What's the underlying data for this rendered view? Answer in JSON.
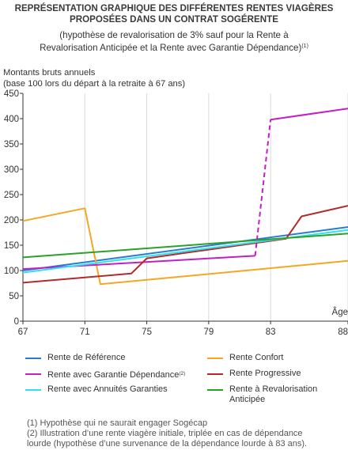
{
  "title": {
    "line1": "REPRÉSENTATION GRAPHIQUE DES DIFFÉRENTES RENTES VIAGÈRES",
    "line2": "PROPOSÉES DANS UN CONTRAT SOGÉRENTE"
  },
  "subtitle": {
    "line1": "(hypothèse de revalorisation de 3% sauf pour la Rente à",
    "line2": "Revalorisation Anticipée et la Rente avec Garantie Dépendance)",
    "note": "(1)"
  },
  "footnotes": {
    "line1": "(1) Hypothèse qui ne saurait engager Sogécap",
    "line2": "(2) Illustration d’une rente viagère initiale, triplée en cas de dépendance",
    "line3": "lourde (hypothèse d’une survenance de la dépendance lourde à 83 ans)."
  },
  "chart_data": {
    "type": "line",
    "ylabel_line1": "Montants bruts annuels",
    "ylabel_line2": "(base 100 lors du départ à la retraite à 67 ans)",
    "xlabel": "Âge",
    "xlim": [
      67,
      88
    ],
    "ylim": [
      0,
      450
    ],
    "xticks": [
      67,
      71,
      75,
      79,
      83,
      88
    ],
    "yticks": [
      0,
      50,
      100,
      150,
      200,
      250,
      300,
      350,
      400,
      450
    ],
    "grid": "vertical",
    "legend_position": "bottom",
    "series": [
      {
        "name": "Rente de Référence",
        "color": "#2b7bd3",
        "points": [
          [
            67,
            100
          ],
          [
            88,
            186
          ]
        ]
      },
      {
        "name": "Rente Confort",
        "color": "#f5a623",
        "points": [
          [
            67,
            198
          ],
          [
            71,
            223
          ],
          [
            72,
            73
          ],
          [
            88,
            119
          ]
        ]
      },
      {
        "name": "Rente avec Garantie Dépendance",
        "name_note": "(2)",
        "color": "#c21fc4",
        "points": [
          [
            67,
            103
          ],
          [
            82,
            129
          ]
        ],
        "dashed_points": [
          [
            82,
            129
          ],
          [
            83,
            398
          ]
        ],
        "points_after": [
          [
            83,
            398
          ],
          [
            88,
            420
          ]
        ]
      },
      {
        "name": "Rente Progressive",
        "color": "#b22a2a",
        "points": [
          [
            67,
            76
          ],
          [
            74,
            94
          ],
          [
            75,
            124
          ],
          [
            84,
            163
          ],
          [
            85,
            207
          ],
          [
            88,
            228
          ]
        ]
      },
      {
        "name": "Rente avec Annuités Garanties",
        "color": "#2fe0f0",
        "points": [
          [
            67,
            96
          ],
          [
            88,
            180
          ]
        ]
      },
      {
        "name": "Rente à Revalorisation Anticipée",
        "color": "#2aa22a",
        "points": [
          [
            67,
            126
          ],
          [
            88,
            173
          ]
        ]
      }
    ]
  }
}
